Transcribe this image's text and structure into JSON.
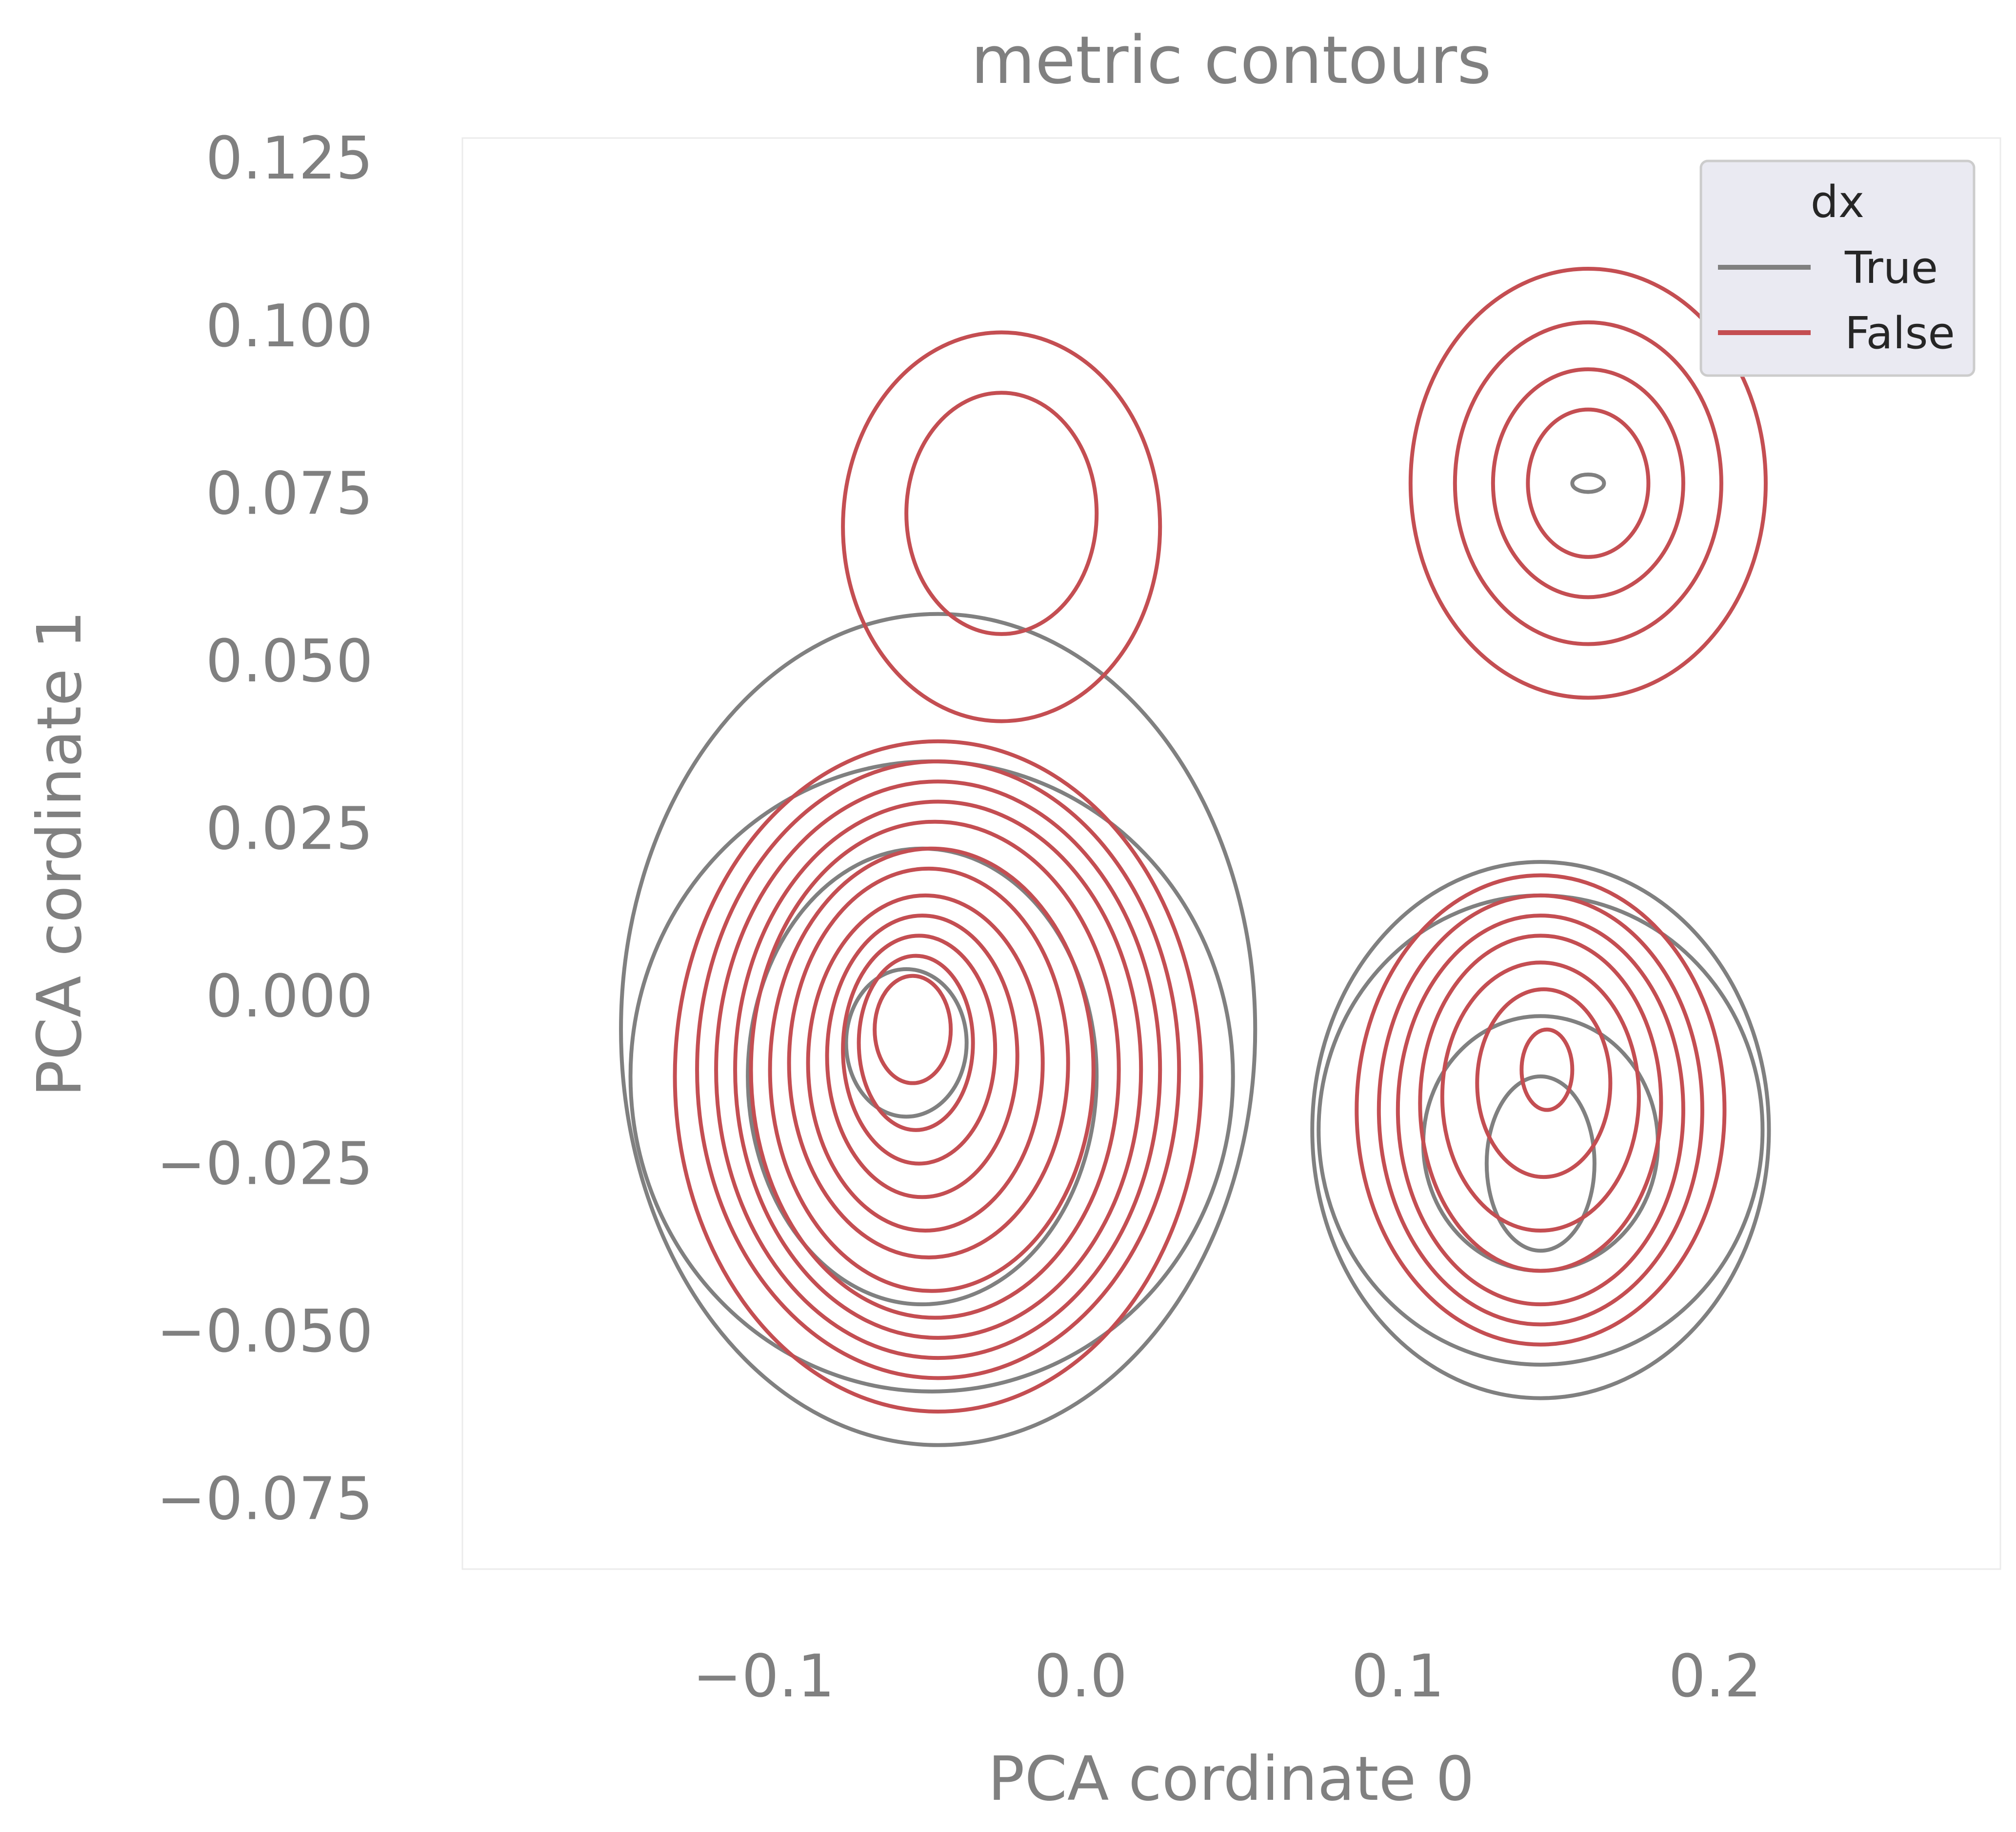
{
  "chart_data": {
    "type": "contour",
    "title": "metric contours",
    "xlabel": "PCA cordinate 0",
    "ylabel": "PCA cordinate 1",
    "xlim": [
      -0.195,
      0.29
    ],
    "ylim": [
      -0.0855,
      0.128
    ],
    "grid": false,
    "x_ticks": [
      -0.1,
      0.0,
      0.1,
      0.2
    ],
    "x_tick_labels": [
      "−0.1",
      "0.0",
      "0.1",
      "0.2"
    ],
    "y_ticks": [
      0.125,
      0.1,
      0.075,
      0.05,
      0.025,
      0.0,
      -0.025,
      -0.05,
      -0.075
    ],
    "y_tick_labels": [
      "0.125",
      "0.100",
      "0.075",
      "0.050",
      "0.025",
      "0.000",
      "−0.025",
      "−0.050",
      "−0.075"
    ],
    "legend": {
      "title": "dx",
      "location": "top-right",
      "entries": [
        {
          "label": "True",
          "color": "#808080"
        },
        {
          "label": "False",
          "color": "#c44e52"
        }
      ]
    },
    "series": [
      {
        "name": "True",
        "color": "#808080",
        "contours": [
          {
            "center": [
              -0.055,
              -0.007
            ],
            "rx": 0.019,
            "ry": 0.011
          },
          {
            "center": [
              -0.05,
              -0.012
            ],
            "rx": 0.055,
            "ry": 0.034
          },
          {
            "center": [
              -0.047,
              -0.012
            ],
            "rx": 0.095,
            "ry": 0.047
          },
          {
            "center": [
              -0.045,
              -0.005
            ],
            "rx": 0.1,
            "ry": 0.062
          },
          {
            "center": [
              0.145,
              -0.025
            ],
            "rx": 0.017,
            "ry": 0.013
          },
          {
            "center": [
              0.145,
              -0.022
            ],
            "rx": 0.037,
            "ry": 0.019
          },
          {
            "center": [
              0.145,
              -0.02
            ],
            "rx": 0.07,
            "ry": 0.035
          },
          {
            "center": [
              0.145,
              -0.02
            ],
            "rx": 0.072,
            "ry": 0.04
          },
          {
            "center": [
              0.16,
              0.0765
            ],
            "rx": 0.005,
            "ry": 0.0013
          }
        ]
      },
      {
        "name": "False",
        "color": "#c44e52",
        "contours": [
          {
            "center": [
              -0.053,
              -0.005
            ],
            "rx": 0.012,
            "ry": 0.008
          },
          {
            "center": [
              -0.052,
              -0.007
            ],
            "rx": 0.018,
            "ry": 0.013
          },
          {
            "center": [
              -0.051,
              -0.008
            ],
            "rx": 0.024,
            "ry": 0.017
          },
          {
            "center": [
              -0.05,
              -0.009
            ],
            "rx": 0.03,
            "ry": 0.021
          },
          {
            "center": [
              -0.049,
              -0.01
            ],
            "rx": 0.037,
            "ry": 0.025
          },
          {
            "center": [
              -0.048,
              -0.01
            ],
            "rx": 0.044,
            "ry": 0.029
          },
          {
            "center": [
              -0.047,
              -0.011
            ],
            "rx": 0.051,
            "ry": 0.033
          },
          {
            "center": [
              -0.046,
              -0.011
            ],
            "rx": 0.058,
            "ry": 0.037
          },
          {
            "center": [
              -0.045,
              -0.011
            ],
            "rx": 0.064,
            "ry": 0.04
          },
          {
            "center": [
              -0.045,
              -0.011
            ],
            "rx": 0.07,
            "ry": 0.043
          },
          {
            "center": [
              -0.045,
              -0.011
            ],
            "rx": 0.076,
            "ry": 0.046
          },
          {
            "center": [
              -0.045,
              -0.012
            ],
            "rx": 0.083,
            "ry": 0.05
          },
          {
            "center": [
              0.147,
              -0.011
            ],
            "rx": 0.008,
            "ry": 0.006
          },
          {
            "center": [
              0.146,
              -0.013
            ],
            "rx": 0.021,
            "ry": 0.014
          },
          {
            "center": [
              0.145,
              -0.015
            ],
            "rx": 0.031,
            "ry": 0.02
          },
          {
            "center": [
              0.145,
              -0.016
            ],
            "rx": 0.038,
            "ry": 0.025
          },
          {
            "center": [
              0.145,
              -0.017
            ],
            "rx": 0.045,
            "ry": 0.029
          },
          {
            "center": [
              0.145,
              -0.017
            ],
            "rx": 0.051,
            "ry": 0.032
          },
          {
            "center": [
              0.145,
              -0.017
            ],
            "rx": 0.058,
            "ry": 0.035
          },
          {
            "center": [
              0.16,
              0.0765
            ],
            "rx": 0.019,
            "ry": 0.011
          },
          {
            "center": [
              0.16,
              0.0765
            ],
            "rx": 0.03,
            "ry": 0.017
          },
          {
            "center": [
              0.16,
              0.0765
            ],
            "rx": 0.042,
            "ry": 0.024
          },
          {
            "center": [
              0.16,
              0.0765
            ],
            "rx": 0.056,
            "ry": 0.032
          },
          {
            "center": [
              -0.025,
              0.072
            ],
            "rx": 0.03,
            "ry": 0.018
          },
          {
            "center": [
              -0.025,
              0.07
            ],
            "rx": 0.05,
            "ry": 0.029
          }
        ]
      }
    ]
  }
}
